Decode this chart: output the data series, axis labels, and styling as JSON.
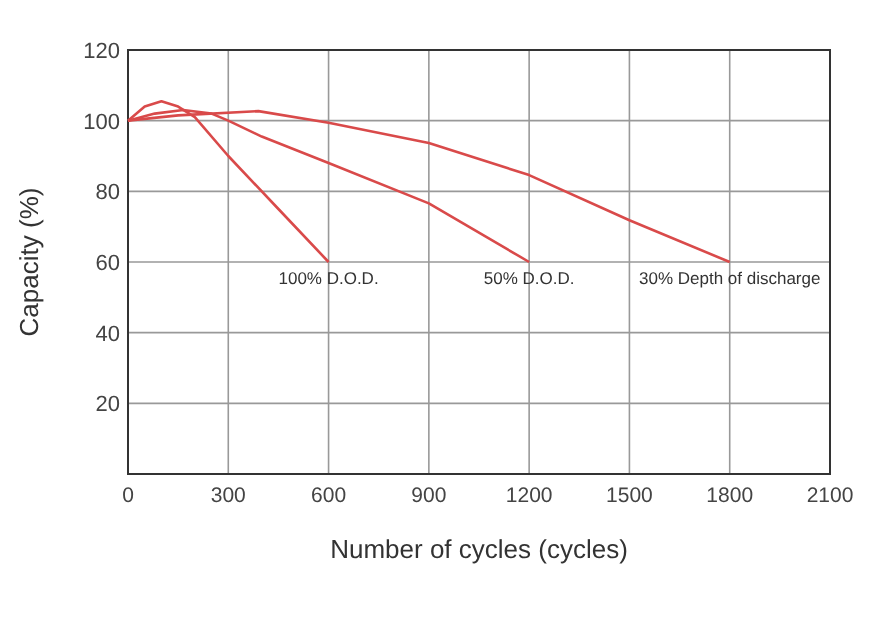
{
  "chart_data": {
    "type": "line",
    "xlabel": "Number of cycles (cycles)",
    "ylabel": "Capacity (%)",
    "xlim": [
      0,
      2100
    ],
    "xticks": [
      0,
      300,
      600,
      900,
      1200,
      1500,
      1800,
      2100
    ],
    "ylim": [
      0,
      120
    ],
    "yticks": [
      20,
      40,
      60,
      80,
      100,
      120
    ],
    "grid": true,
    "marker": "none",
    "line_style": "solid",
    "series": [
      {
        "name": "100% D.O.D.",
        "color": "#d94a4a",
        "x": [
          0,
          50,
          100,
          150,
          200,
          300,
          450,
          600
        ],
        "values": [
          100,
          104,
          105.5,
          104,
          101,
          90,
          75,
          60
        ]
      },
      {
        "name": "50% D.O.D.",
        "color": "#d94a4a",
        "x": [
          0,
          80,
          165,
          250,
          300,
          400,
          600,
          900,
          1200
        ],
        "values": [
          100,
          102,
          103,
          102,
          100,
          95.5,
          88,
          76.6,
          60
        ]
      },
      {
        "name": "30% Depth of discharge",
        "color": "#d94a4a",
        "x": [
          0,
          150,
          390,
          600,
          900,
          1200,
          1500,
          1800
        ],
        "values": [
          100,
          101.5,
          102.7,
          99.4,
          93.7,
          84.6,
          71.8,
          60
        ]
      }
    ]
  }
}
